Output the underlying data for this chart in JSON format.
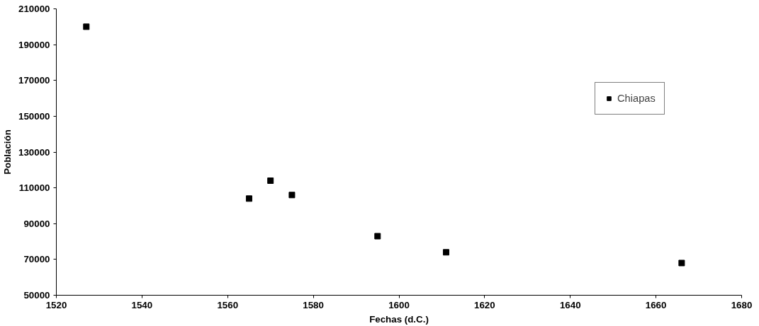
{
  "chart_data": {
    "type": "scatter",
    "xlabel": "Fechas (d.C.)",
    "ylabel": "Población",
    "x": [
      1527,
      1565,
      1570,
      1575,
      1595,
      1611,
      1666
    ],
    "series": [
      {
        "name": "Chiapas",
        "color": "#000000",
        "values": [
          200000,
          104000,
          114000,
          106000,
          83000,
          74000,
          68000
        ]
      }
    ],
    "xlim": [
      1520,
      1680
    ],
    "xticks": [
      1520,
      1540,
      1560,
      1580,
      1600,
      1620,
      1640,
      1660,
      1680
    ],
    "ylim": [
      50000,
      210000
    ],
    "yticks": [
      50000,
      70000,
      90000,
      110000,
      130000,
      150000,
      170000,
      190000,
      210000
    ],
    "marker": "square",
    "grid": false,
    "legend": "top right"
  }
}
